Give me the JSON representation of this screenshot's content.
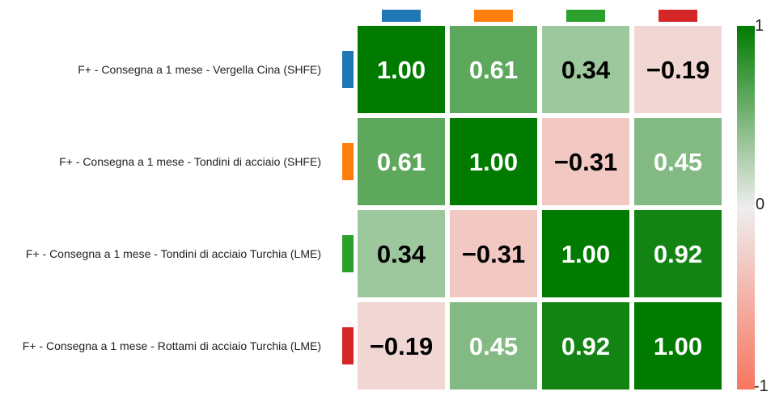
{
  "chart_data": {
    "type": "heatmap",
    "title": "",
    "row_labels": [
      "F+ - Consegna a 1 mese - Vergella Cina (SHFE)",
      "F+ - Consegna a 1 mese - Tondini di acciaio (SHFE)",
      "F+ - Consegna a 1 mese - Tondini di acciaio Turchia (LME)",
      "F+ - Consegna a 1 mese - Rottami di acciaio Turchia (LME)"
    ],
    "series_colors": [
      "#1f77b4",
      "#ff7f0e",
      "#2ca02c",
      "#d62728"
    ],
    "values": [
      [
        1.0,
        0.61,
        0.34,
        -0.19
      ],
      [
        0.61,
        1.0,
        -0.31,
        0.45
      ],
      [
        0.34,
        -0.31,
        1.0,
        0.92
      ],
      [
        -0.19,
        0.45,
        0.92,
        1.0
      ]
    ],
    "value_labels": [
      [
        "1.00",
        "0.61",
        "0.34",
        "−0.19"
      ],
      [
        "0.61",
        "1.00",
        "−0.31",
        "0.45"
      ],
      [
        "0.34",
        "−0.31",
        "1.00",
        "0.92"
      ],
      [
        "−0.19",
        "0.45",
        "0.92",
        "1.00"
      ]
    ],
    "colorscale": {
      "min": -1,
      "max": 1,
      "low_color": "#f87660",
      "mid_color": "#eeeeee",
      "high_color": "#007b00",
      "tick_labels": [
        "1",
        "0",
        "-1"
      ]
    }
  }
}
